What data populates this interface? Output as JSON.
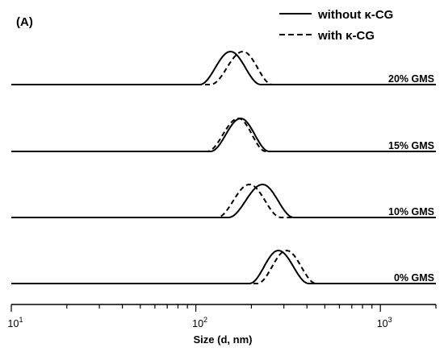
{
  "chart_data": {
    "type": "line",
    "panel_label": "(A)",
    "xlabel": "Size (d, nm)",
    "xscale": "log",
    "xlim": [
      10,
      2000
    ],
    "x_ticks": [
      {
        "value": 10,
        "base": "10",
        "exp": "1"
      },
      {
        "value": 100,
        "base": "10",
        "exp": "2"
      },
      {
        "value": 1000,
        "base": "10",
        "exp": "3"
      }
    ],
    "legend": {
      "placement": "top-right",
      "entries": [
        {
          "name": "without κ-CG",
          "style": "solid"
        },
        {
          "name": "with κ-CG",
          "style": "dashed"
        }
      ]
    },
    "traces": [
      {
        "label": "20% GMS",
        "without_kCG": {
          "x_start": 105,
          "x_peak": 154,
          "x_end": 225
        },
        "with_kCG": {
          "x_start": 120,
          "x_peak": 180,
          "x_end": 260
        }
      },
      {
        "label": "15% GMS",
        "without_kCG": {
          "x_start": 120,
          "x_peak": 175,
          "x_end": 250
        },
        "with_kCG": {
          "x_start": 115,
          "x_peak": 170,
          "x_end": 240
        }
      },
      {
        "label": "10% GMS",
        "without_kCG": {
          "x_start": 150,
          "x_peak": 230,
          "x_end": 340
        },
        "with_kCG": {
          "x_start": 130,
          "x_peak": 195,
          "x_end": 290
        }
      },
      {
        "label": "0% GMS",
        "without_kCG": {
          "x_start": 195,
          "x_peak": 280,
          "x_end": 410
        },
        "with_kCG": {
          "x_start": 215,
          "x_peak": 310,
          "x_end": 450
        }
      }
    ]
  }
}
